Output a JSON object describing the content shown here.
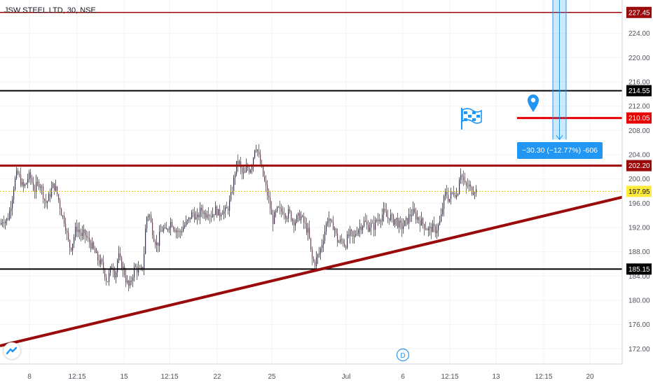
{
  "header": {
    "title": "JSW STEEL LTD, 30, NSE"
  },
  "measure_label": "−30.30 (−12.77%) -606",
  "dividend_marker": "D",
  "colors": {
    "up": "#2a2a8a",
    "down": "#c2185b",
    "resistance": "#9b0a0a",
    "support": "#000000",
    "trend": "#9b0a0a",
    "target": "#e60000",
    "current": "#ffeb3b",
    "measure": "#2196f3"
  },
  "icons": [
    "location-pin-icon",
    "flag-icon",
    "tradingview-logo-icon",
    "dividend-icon"
  ],
  "price_axis": {
    "ticks": [
      "224.00",
      "220.00",
      "216.00",
      "212.00",
      "208.00",
      "204.00",
      "200.00",
      "196.00",
      "192.00",
      "188.00",
      "184.00",
      "180.00",
      "176.00",
      "172.00"
    ]
  },
  "time_axis": {
    "ticks": [
      "8",
      "12:15",
      "15",
      "12:15",
      "22",
      "25",
      "Jul",
      "6",
      "12:15",
      "13",
      "12:15",
      "20"
    ]
  },
  "chart_data": {
    "type": "candlestick",
    "title": "JSW STEEL LTD, 30, NSE",
    "ylim": [
      169.5,
      229.5
    ],
    "last_price": 197.95,
    "horizontal_lines": [
      {
        "name": "resistance-227",
        "value": 227.45,
        "label": "227.45"
      },
      {
        "name": "resistance-214",
        "value": 214.55,
        "label": "214.55"
      },
      {
        "name": "target-210",
        "value": 210.05,
        "label": "210.05"
      },
      {
        "name": "resistance-202",
        "value": 202.2,
        "label": "202.20"
      },
      {
        "name": "last-price",
        "value": 197.95,
        "label": "197.95"
      },
      {
        "name": "support-185",
        "value": 185.15,
        "label": "185.15"
      }
    ],
    "trendline": {
      "from": 172.5,
      "to": 197.0
    },
    "price_path": [
      [
        0,
        192.5
      ],
      [
        4,
        193.5
      ],
      [
        8,
        193
      ],
      [
        12,
        194
      ],
      [
        16,
        196.5
      ],
      [
        20,
        199.5
      ],
      [
        24,
        201
      ],
      [
        28,
        200
      ],
      [
        32,
        198.5
      ],
      [
        36,
        199
      ],
      [
        40,
        200.5
      ],
      [
        44,
        200
      ],
      [
        48,
        198
      ],
      [
        52,
        199
      ],
      [
        56,
        199.5
      ],
      [
        60,
        198
      ],
      [
        64,
        196
      ],
      [
        68,
        196.5
      ],
      [
        72,
        198
      ],
      [
        76,
        199
      ],
      [
        80,
        198
      ],
      [
        84,
        196
      ],
      [
        88,
        194
      ],
      [
        92,
        193
      ],
      [
        96,
        190
      ],
      [
        100,
        188.5
      ],
      [
        104,
        190
      ],
      [
        108,
        192
      ],
      [
        112,
        191.5
      ],
      [
        116,
        190.5
      ],
      [
        120,
        191
      ],
      [
        124,
        190
      ],
      [
        128,
        189.5
      ],
      [
        132,
        188.5
      ],
      [
        136,
        187.5
      ],
      [
        140,
        186.5
      ],
      [
        144,
        186
      ],
      [
        148,
        185
      ],
      [
        152,
        183
      ],
      [
        156,
        184.5
      ],
      [
        160,
        186
      ],
      [
        164,
        184
      ],
      [
        168,
        187.5
      ],
      [
        172,
        186
      ],
      [
        176,
        185
      ],
      [
        180,
        183
      ],
      [
        184,
        182
      ],
      [
        188,
        184
      ],
      [
        192,
        185.5
      ],
      [
        196,
        185
      ],
      [
        200,
        184.5
      ],
      [
        204,
        186
      ],
      [
        208,
        193.5
      ],
      [
        212,
        194.5
      ],
      [
        216,
        192
      ],
      [
        220,
        190
      ],
      [
        224,
        189
      ],
      [
        228,
        191
      ],
      [
        232,
        192
      ],
      [
        236,
        191
      ],
      [
        240,
        192.5
      ],
      [
        244,
        193
      ],
      [
        248,
        192
      ],
      [
        252,
        191.5
      ],
      [
        256,
        191
      ],
      [
        260,
        192
      ],
      [
        264,
        192.5
      ],
      [
        268,
        193
      ],
      [
        272,
        194
      ],
      [
        276,
        194.5
      ],
      [
        280,
        193
      ],
      [
        284,
        194.5
      ],
      [
        288,
        195
      ],
      [
        292,
        194
      ],
      [
        296,
        195
      ],
      [
        300,
        194
      ],
      [
        304,
        194.5
      ],
      [
        308,
        195
      ],
      [
        312,
        194
      ],
      [
        316,
        195
      ],
      [
        320,
        194.5
      ],
      [
        324,
        195
      ],
      [
        328,
        196.5
      ],
      [
        332,
        199
      ],
      [
        336,
        202
      ],
      [
        340,
        203
      ],
      [
        344,
        201
      ],
      [
        348,
        200.5
      ],
      [
        352,
        202
      ],
      [
        356,
        201.5
      ],
      [
        360,
        203
      ],
      [
        364,
        206
      ],
      [
        368,
        204
      ],
      [
        372,
        202
      ],
      [
        376,
        200
      ],
      [
        380,
        198
      ],
      [
        384,
        196
      ],
      [
        388,
        193
      ],
      [
        392,
        194
      ],
      [
        396,
        195
      ],
      [
        400,
        194.5
      ],
      [
        404,
        195
      ],
      [
        408,
        194
      ],
      [
        412,
        194.5
      ],
      [
        416,
        193.5
      ],
      [
        420,
        193
      ],
      [
        424,
        193.5
      ],
      [
        428,
        194
      ],
      [
        432,
        193
      ],
      [
        436,
        192
      ],
      [
        440,
        191
      ],
      [
        444,
        187
      ],
      [
        448,
        186
      ],
      [
        452,
        187
      ],
      [
        456,
        188
      ],
      [
        460,
        190
      ],
      [
        464,
        192
      ],
      [
        468,
        194
      ],
      [
        472,
        192
      ],
      [
        476,
        192.5
      ],
      [
        480,
        190
      ],
      [
        484,
        189.5
      ],
      [
        488,
        190
      ],
      [
        492,
        189
      ],
      [
        496,
        190.5
      ],
      [
        500,
        191
      ],
      [
        504,
        190
      ],
      [
        508,
        191.5
      ],
      [
        512,
        192
      ],
      [
        516,
        192.5
      ],
      [
        520,
        193
      ],
      [
        524,
        192
      ],
      [
        528,
        192.5
      ],
      [
        532,
        192
      ],
      [
        536,
        193
      ],
      [
        540,
        193.5
      ],
      [
        544,
        194
      ],
      [
        548,
        194.5
      ],
      [
        552,
        193.5
      ],
      [
        556,
        194
      ],
      [
        560,
        193
      ],
      [
        564,
        193.5
      ],
      [
        568,
        192.5
      ],
      [
        572,
        192
      ],
      [
        576,
        192.5
      ],
      [
        580,
        193
      ],
      [
        584,
        194
      ],
      [
        588,
        194.5
      ],
      [
        592,
        194
      ],
      [
        596,
        193.5
      ],
      [
        600,
        193
      ],
      [
        604,
        192.5
      ],
      [
        608,
        192
      ],
      [
        612,
        191.5
      ],
      [
        616,
        192
      ],
      [
        620,
        191.5
      ],
      [
        624,
        192
      ],
      [
        628,
        193
      ],
      [
        632,
        196
      ],
      [
        636,
        198
      ],
      [
        640,
        196.5
      ],
      [
        644,
        197.5
      ],
      [
        648,
        198
      ],
      [
        652,
        197
      ],
      [
        656,
        201.5
      ],
      [
        660,
        200
      ],
      [
        664,
        198.5
      ],
      [
        668,
        199
      ],
      [
        672,
        198
      ],
      [
        676,
        198.5
      ],
      [
        680,
        197.95
      ]
    ],
    "annotations": [
      {
        "type": "measure",
        "text": "−30.30 (−12.77%) -606",
        "from": 229.5,
        "to": 206.5
      },
      {
        "type": "event",
        "text": "D"
      }
    ]
  }
}
